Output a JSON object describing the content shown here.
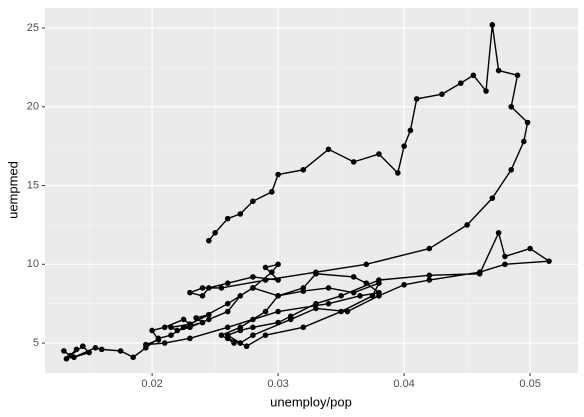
{
  "chart_data": {
    "type": "path",
    "xlabel": "unemploy/pop",
    "ylabel": "uempmed",
    "x": [
      0.013,
      0.0135,
      0.014,
      0.0132,
      0.0145,
      0.015,
      0.0138,
      0.0155,
      0.016,
      0.0175,
      0.0185,
      0.0195,
      0.0205,
      0.0215,
      0.0225,
      0.024,
      0.0235,
      0.0245,
      0.023,
      0.0225,
      0.021,
      0.02,
      0.0205,
      0.0195,
      0.021,
      0.023,
      0.026,
      0.03,
      0.034,
      0.0365,
      0.038,
      0.037,
      0.036,
      0.033,
      0.032,
      0.03,
      0.029,
      0.028,
      0.027,
      0.0255,
      0.0265,
      0.026,
      0.027,
      0.028,
      0.031,
      0.033,
      0.0355,
      0.038,
      0.04,
      0.042,
      0.046,
      0.048,
      0.0515,
      0.05,
      0.048,
      0.0475,
      0.046,
      0.042,
      0.038,
      0.035,
      0.033,
      0.031,
      0.03,
      0.028,
      0.027,
      0.026,
      0.027,
      0.0275,
      0.029,
      0.032,
      0.035,
      0.0375,
      0.038,
      0.036,
      0.034,
      0.032,
      0.03,
      0.028,
      0.027,
      0.026,
      0.0245,
      0.023,
      0.022,
      0.0215,
      0.023,
      0.026,
      0.028,
      0.0295,
      0.03,
      0.029,
      0.03,
      0.028,
      0.026,
      0.0245,
      0.024,
      0.023,
      0.024,
      0.0255,
      0.029,
      0.033,
      0.037,
      0.042,
      0.045,
      0.047,
      0.0485,
      0.0495,
      0.0498,
      0.0485,
      0.049,
      0.0475,
      0.047,
      0.0465,
      0.0455,
      0.0445,
      0.043,
      0.041,
      0.0405,
      0.04,
      0.0395,
      0.038,
      0.036,
      0.034,
      0.032,
      0.03,
      0.0295,
      0.028,
      0.027,
      0.026,
      0.025,
      0.0245
    ],
    "values": [
      4.5,
      4.2,
      4.6,
      4.0,
      4.8,
      4.4,
      4.1,
      4.7,
      4.6,
      4.5,
      4.1,
      4.7,
      5.3,
      5.5,
      6.0,
      6.3,
      6.6,
      6.8,
      6.2,
      6.5,
      6.0,
      5.8,
      5.2,
      4.9,
      5.0,
      5.3,
      6.0,
      7.0,
      7.5,
      8.0,
      8.2,
      8.8,
      9.2,
      9.4,
      8.5,
      8.0,
      7.0,
      6.5,
      6.0,
      5.5,
      5.0,
      5.3,
      5.0,
      5.5,
      6.5,
      7.2,
      7.0,
      8.0,
      8.7,
      9.0,
      9.5,
      10.0,
      10.2,
      11.0,
      10.5,
      12.0,
      9.4,
      9.3,
      9.0,
      8.0,
      7.5,
      6.7,
      6.3,
      6.0,
      5.8,
      5.5,
      5.0,
      4.8,
      5.5,
      6.0,
      7.0,
      8.0,
      8.8,
      8.2,
      8.5,
      8.3,
      8.0,
      8.5,
      8.0,
      7.0,
      6.5,
      6.0,
      5.8,
      6.0,
      6.2,
      7.5,
      8.5,
      9.5,
      10.0,
      9.8,
      9.0,
      9.2,
      8.8,
      8.5,
      8.0,
      8.2,
      8.5,
      8.5,
      9.0,
      9.5,
      10.0,
      11.0,
      12.5,
      14.2,
      16.0,
      17.8,
      19.0,
      20.0,
      22.0,
      22.3,
      25.2,
      21.0,
      22.0,
      21.5,
      20.8,
      20.5,
      18.5,
      17.5,
      15.8,
      17.0,
      16.5,
      17.3,
      16.0,
      15.7,
      14.6,
      14.0,
      13.2,
      12.9,
      12.0,
      11.5
    ],
    "color": "#000000",
    "xlim": [
      0.0115,
      0.0538
    ],
    "xticks": [
      0.02,
      0.03,
      0.04,
      0.05
    ],
    "ylim": [
      3.1,
      26.27
    ],
    "yticks": [
      5,
      10,
      15,
      20,
      25
    ],
    "grid": true
  }
}
